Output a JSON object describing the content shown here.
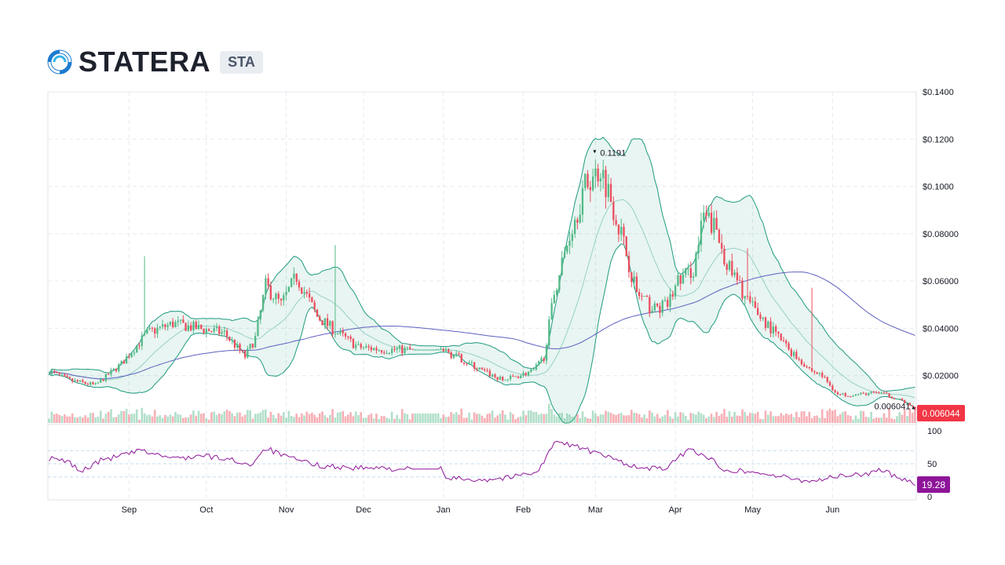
{
  "header": {
    "name": "STATERA",
    "symbol": "STA"
  },
  "colors": {
    "up": "#53b987",
    "down": "#eb4d5c",
    "band": "#1e9a7f",
    "sma": "#5d5fbf",
    "rsi": "#8e1599",
    "rsiBadge": "#8e1599",
    "priceBadge": "#f23645"
  },
  "chart_data": {
    "type": "candlestick",
    "price_axis": {
      "ticks": [
        "$0.1400",
        "$0.1200",
        "$0.1000",
        "$0.08000",
        "$0.06000",
        "$0.04000",
        "$0.02000"
      ],
      "ylim": [
        0,
        0.14
      ]
    },
    "rsi_axis": {
      "ticks": [
        "100",
        "50",
        "0"
      ],
      "ylim": [
        0,
        100
      ],
      "bands": [
        70,
        50,
        30
      ]
    },
    "x_labels": [
      "Sep",
      "Oct",
      "Nov",
      "Dec",
      "Jan",
      "Feb",
      "Mar",
      "Apr",
      "May",
      "Jun"
    ],
    "annotations": {
      "high": "0.1191",
      "low": "0.006041"
    },
    "last_price": "0.006044",
    "last_rsi": "19.28",
    "close_anchors": [
      [
        0,
        0.022
      ],
      [
        8,
        0.018
      ],
      [
        18,
        0.016
      ],
      [
        28,
        0.025
      ],
      [
        38,
        0.038
      ],
      [
        48,
        0.042
      ],
      [
        58,
        0.04
      ],
      [
        68,
        0.038
      ],
      [
        76,
        0.028
      ],
      [
        80,
        0.036
      ],
      [
        84,
        0.058
      ],
      [
        90,
        0.05
      ],
      [
        96,
        0.062
      ],
      [
        104,
        0.045
      ],
      [
        112,
        0.038
      ],
      [
        120,
        0.032
      ],
      [
        130,
        0.031
      ],
      [
        140,
        0.031
      ],
      [
        152,
        0.031
      ],
      [
        160,
        0.027
      ],
      [
        168,
        0.022
      ],
      [
        176,
        0.018
      ],
      [
        188,
        0.022
      ],
      [
        192,
        0.028
      ],
      [
        196,
        0.055
      ],
      [
        202,
        0.08
      ],
      [
        208,
        0.1
      ],
      [
        214,
        0.108
      ],
      [
        218,
        0.095
      ],
      [
        222,
        0.08
      ],
      [
        228,
        0.055
      ],
      [
        234,
        0.048
      ],
      [
        240,
        0.05
      ],
      [
        244,
        0.06
      ],
      [
        250,
        0.065
      ],
      [
        254,
        0.087
      ],
      [
        258,
        0.083
      ],
      [
        264,
        0.065
      ],
      [
        272,
        0.05
      ],
      [
        280,
        0.04
      ],
      [
        288,
        0.03
      ],
      [
        296,
        0.022
      ],
      [
        300,
        0.02
      ],
      [
        306,
        0.012
      ],
      [
        314,
        0.012
      ],
      [
        322,
        0.013
      ],
      [
        330,
        0.01
      ],
      [
        336,
        0.006
      ]
    ],
    "gap": [
      140,
      152
    ],
    "spikes": [
      [
        37,
        0.0705
      ],
      [
        111,
        0.0752
      ],
      [
        271,
        0.0738
      ],
      [
        296,
        0.0572
      ]
    ],
    "rsi_anchors": [
      [
        0,
        58
      ],
      [
        8,
        52
      ],
      [
        12,
        38
      ],
      [
        20,
        55
      ],
      [
        36,
        70
      ],
      [
        48,
        58
      ],
      [
        60,
        62
      ],
      [
        72,
        55
      ],
      [
        78,
        48
      ],
      [
        84,
        74
      ],
      [
        92,
        60
      ],
      [
        104,
        48
      ],
      [
        116,
        44
      ],
      [
        140,
        42
      ],
      [
        152,
        42
      ],
      [
        154,
        28
      ],
      [
        170,
        26
      ],
      [
        180,
        30
      ],
      [
        190,
        40
      ],
      [
        196,
        82
      ],
      [
        204,
        78
      ],
      [
        212,
        66
      ],
      [
        220,
        56
      ],
      [
        230,
        42
      ],
      [
        240,
        44
      ],
      [
        248,
        72
      ],
      [
        254,
        64
      ],
      [
        262,
        42
      ],
      [
        276,
        36
      ],
      [
        290,
        26
      ],
      [
        296,
        24
      ],
      [
        304,
        30
      ],
      [
        316,
        34
      ],
      [
        322,
        40
      ],
      [
        330,
        30
      ],
      [
        336,
        20
      ]
    ]
  }
}
